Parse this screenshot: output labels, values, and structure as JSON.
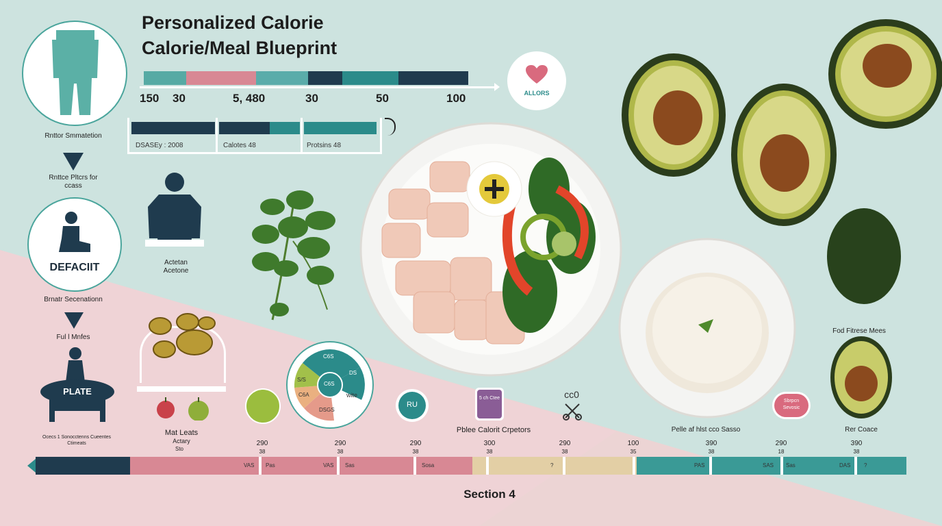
{
  "title": {
    "line1": "Personalized Calorie",
    "line2": "Calorie/Meal Blueprint"
  },
  "top_bar": {
    "segments": [
      "#56aaa4",
      "#d88894",
      "#5aacaa",
      "#1f3b4e",
      "#2b8b8a",
      "#1f3b4e"
    ],
    "numbers": [
      "150",
      "30",
      "5, 480",
      "30",
      "50",
      "100"
    ]
  },
  "legend_bar": {
    "items": [
      {
        "label": "DSASEy : 2008"
      },
      {
        "label": "Calotes 48"
      },
      {
        "label": "Protsins 48"
      }
    ]
  },
  "heart_badge": {
    "label": "ALLORS"
  },
  "left_flow": {
    "step1_label": "Rnttor Smmatetion",
    "step2_label": "Rnttce Pltcrs for ccass",
    "deficit_label": "DEFACIIT",
    "step3_label": "Brnatr Secenationn",
    "step4_label": "Ful l Mnfes",
    "plate_label": "PLATE",
    "plate_caption": "Ocecs 1 Sonocctenns Cueentes Ctimeats"
  },
  "person_label": {
    "line1": "Actetan",
    "line2": "Acetone"
  },
  "meal_labels": {
    "line1": "Mat Leats",
    "line2": "Actary",
    "line3": "Sto"
  },
  "pie_labels": {
    "c1": "C6S",
    "c2": "DS",
    "c3": "C6S",
    "c4": "wite",
    "c5": "C6A",
    "c6": "DSGS",
    "c7": "S/S"
  },
  "teal_badge": {
    "label": "RU"
  },
  "purple_badge": {
    "label": "5 ch Ctee"
  },
  "icon_badge": {
    "label": "cc0"
  },
  "placement_label": "Pblee Calorit Crpetors",
  "plate_label_right": "Pelle af hlst cco Sasso",
  "food_label": "Fod Fitrese Mees",
  "right_label": "Rer Coace",
  "pink_badge": {
    "label": "Sbrpcn Sevosic"
  },
  "timeline": {
    "numbers": [
      {
        "top": "290",
        "bottom": "38"
      },
      {
        "top": "290",
        "bottom": "38"
      },
      {
        "top": "290",
        "bottom": "38"
      },
      {
        "top": "300",
        "bottom": "38"
      },
      {
        "top": "290",
        "bottom": "38"
      },
      {
        "top": "100",
        "bottom": "35"
      },
      {
        "top": "390",
        "bottom": "38"
      },
      {
        "top": "290",
        "bottom": "18"
      },
      {
        "top": "390",
        "bottom": "38"
      }
    ],
    "cells": [
      "VAS",
      "Pas",
      "VAS",
      "Sas",
      "Sosa",
      "?",
      "PAS",
      "SAS",
      "Sas",
      "DAS",
      "?"
    ]
  },
  "section_label": "Section 4"
}
